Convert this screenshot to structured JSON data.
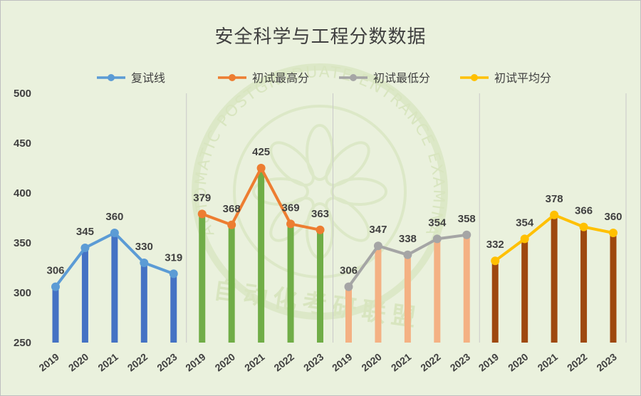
{
  "chart_data": {
    "type": "line",
    "title": "安全科学与工程分数数据",
    "ylim": [
      250,
      500
    ],
    "yticks": [
      "250",
      "300",
      "350",
      "400",
      "450",
      "500"
    ],
    "grid": "vertical-only",
    "legend_position": "top",
    "panels": [
      {
        "series": {
          "name": "复试线",
          "color": "#5b9bd5",
          "bar_color": "#4472c4"
        },
        "categories": [
          "2019",
          "2020",
          "2021",
          "2022",
          "2023"
        ],
        "values": [
          306,
          345,
          360,
          330,
          319
        ],
        "labels": [
          "306",
          "345",
          "360",
          "330",
          "319"
        ]
      },
      {
        "series": {
          "name": "初试最高分",
          "color": "#ed7d31",
          "bar_color": "#70ad47"
        },
        "categories": [
          "2019",
          "2020",
          "2021",
          "2022",
          "2023"
        ],
        "values": [
          379,
          368,
          425,
          369,
          363
        ],
        "labels": [
          "379",
          "368",
          "425",
          "369",
          "363"
        ]
      },
      {
        "series": {
          "name": "初试最低分",
          "color": "#a5a5a5",
          "bar_color": "#f4b183"
        },
        "categories": [
          "2019",
          "2020",
          "2021",
          "2022",
          "2023"
        ],
        "values": [
          306,
          347,
          338,
          354,
          358
        ],
        "labels": [
          "306",
          "347",
          "338",
          "354",
          "358"
        ]
      },
      {
        "series": {
          "name": "初试平均分",
          "color": "#ffc000",
          "bar_color": "#9e480e"
        },
        "categories": [
          "2019",
          "2020",
          "2021",
          "2022",
          "2023"
        ],
        "values": [
          332,
          354,
          378,
          366,
          360
        ],
        "labels": [
          "332",
          "354",
          "378",
          "366",
          "360"
        ]
      }
    ],
    "watermark_text": [
      "AUTOMATIC POSTGRADUATE ENTRANCE EXAMINATION ALLIANCE",
      "自动化考研联盟"
    ]
  }
}
